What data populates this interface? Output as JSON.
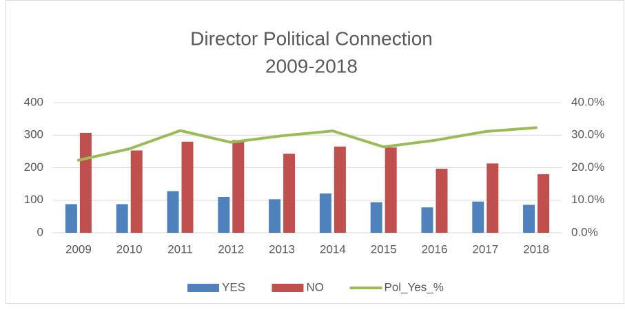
{
  "chart_data": {
    "type": "bar-line",
    "title": [
      "Director Political Connection",
      "2009-2018"
    ],
    "categories": [
      "2009",
      "2010",
      "2011",
      "2012",
      "2013",
      "2014",
      "2015",
      "2016",
      "2017",
      "2018"
    ],
    "series": [
      {
        "name": "YES",
        "color": "#4f81bd",
        "type": "bar",
        "values": [
          88,
          88,
          128,
          110,
          103,
          121,
          94,
          78,
          96,
          86
        ]
      },
      {
        "name": "NO",
        "color": "#c0504d",
        "type": "bar",
        "values": [
          307,
          253,
          280,
          285,
          243,
          265,
          262,
          197,
          213,
          180
        ]
      },
      {
        "name": "Pol_Yes_%",
        "color": "#9bbb59",
        "type": "line",
        "axis": "y2",
        "values": [
          22.3,
          25.8,
          31.4,
          27.8,
          29.8,
          31.3,
          26.4,
          28.4,
          31.1,
          32.3
        ]
      }
    ],
    "ylim": [
      0,
      400
    ],
    "yticks": [
      0,
      100,
      200,
      300,
      400
    ],
    "y2lim": [
      0,
      40
    ],
    "y2ticks": [
      {
        "value": 0,
        "label": "0.0%"
      },
      {
        "value": 10,
        "label": "10.0%"
      },
      {
        "value": 20,
        "label": "20.0%"
      },
      {
        "value": 30,
        "label": "30.0%"
      },
      {
        "value": 40,
        "label": "40.0%"
      }
    ],
    "grid": true,
    "legend": "bottom"
  }
}
